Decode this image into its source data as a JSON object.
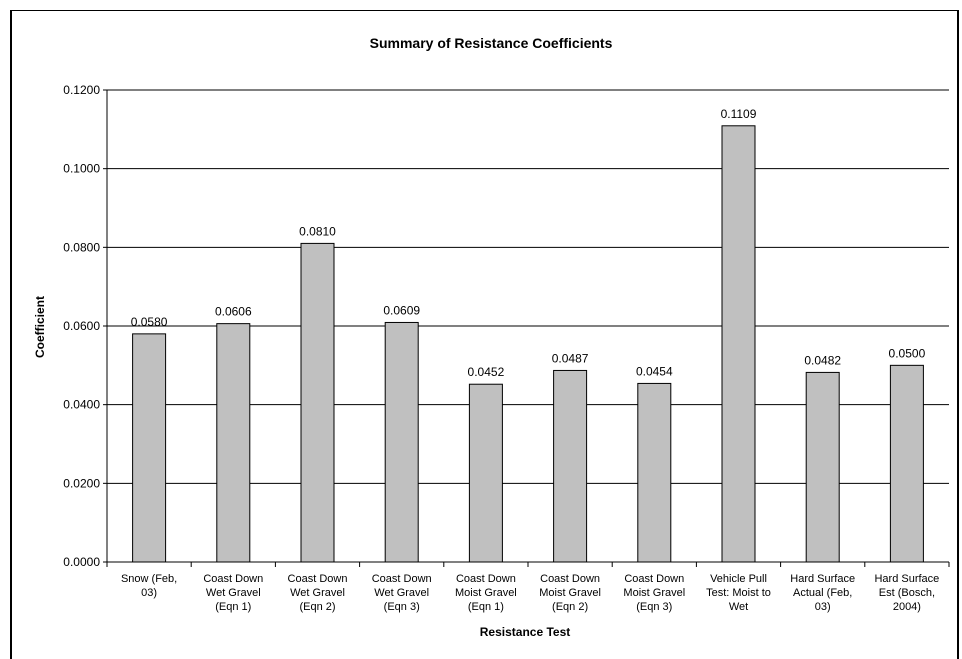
{
  "chart_data": {
    "type": "bar",
    "title": "Summary of Resistance Coefficients",
    "xlabel": "Resistance Test",
    "ylabel": "Coefficient",
    "ylim": [
      0,
      0.12
    ],
    "yticks": [
      "0.0000",
      "0.0200",
      "0.0400",
      "0.0600",
      "0.0800",
      "0.1000",
      "0.1200"
    ],
    "grid": true,
    "bar_color": "#c0c0c0",
    "categories": [
      [
        "Snow (Feb,",
        "03)"
      ],
      [
        "Coast Down",
        "Wet Gravel",
        "(Eqn 1)"
      ],
      [
        "Coast Down",
        "Wet Gravel",
        "(Eqn 2)"
      ],
      [
        "Coast Down",
        "Wet Gravel",
        "(Eqn 3)"
      ],
      [
        "Coast Down",
        "Moist Gravel",
        "(Eqn 1)"
      ],
      [
        "Coast Down",
        "Moist Gravel",
        "(Eqn 2)"
      ],
      [
        "Coast Down",
        "Moist Gravel",
        "(Eqn 3)"
      ],
      [
        "Vehicle Pull",
        "Test: Moist to",
        "Wet"
      ],
      [
        "Hard Surface",
        "Actual (Feb,",
        "03)"
      ],
      [
        "Hard Surface",
        "Est (Bosch,",
        "2004)"
      ]
    ],
    "values": [
      0.058,
      0.0606,
      0.081,
      0.0609,
      0.0452,
      0.0487,
      0.0454,
      0.1109,
      0.0482,
      0.05
    ],
    "data_labels": [
      "0.0580",
      "0.0606",
      "0.0810",
      "0.0609",
      "0.0452",
      "0.0487",
      "0.0454",
      "0.1109",
      "0.0482",
      "0.0500"
    ]
  }
}
